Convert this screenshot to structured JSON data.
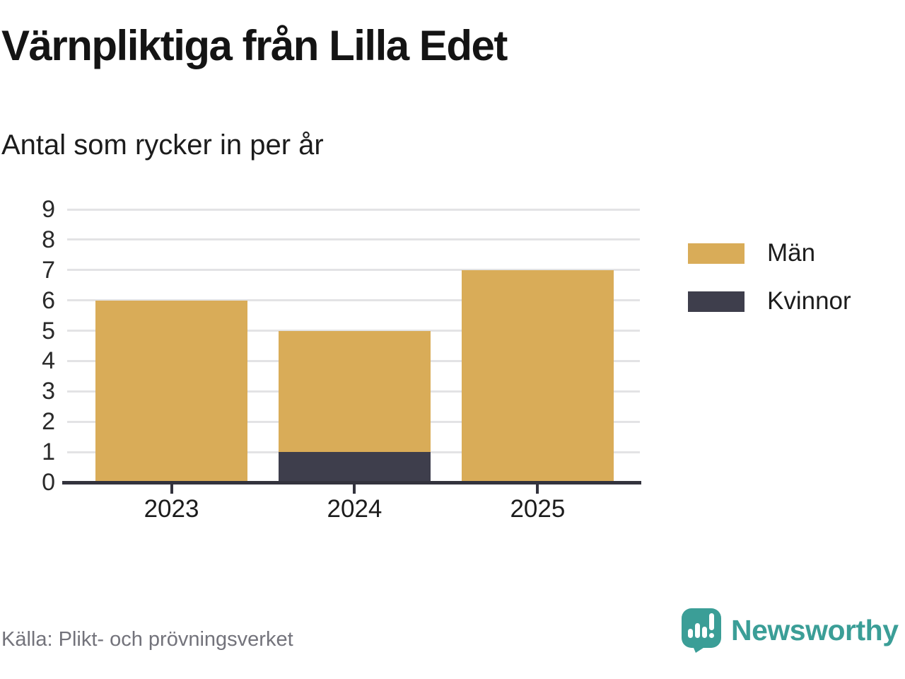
{
  "chart_data": {
    "type": "bar",
    "stacked": true,
    "title": "Värnpliktiga från Lilla Edet",
    "subtitle": "Antal som rycker in per år",
    "categories": [
      "2023",
      "2024",
      "2025"
    ],
    "series": [
      {
        "name": "Kvinnor",
        "color": "#3E3E4C",
        "values": [
          0,
          1,
          0
        ]
      },
      {
        "name": "Män",
        "color": "#D9AC58",
        "values": [
          6,
          4,
          7
        ]
      }
    ],
    "stack_totals": [
      6,
      5,
      7
    ],
    "xlabel": "",
    "ylabel": "",
    "ylim": [
      0,
      9
    ],
    "yticks": [
      0,
      1,
      2,
      3,
      4,
      5,
      6,
      7,
      8,
      9
    ],
    "grid": true,
    "legend_position": "right"
  },
  "legend": {
    "items": [
      {
        "label": "Män",
        "color": "#D9AC58"
      },
      {
        "label": "Kvinnor",
        "color": "#3E3E4C"
      }
    ]
  },
  "footer": {
    "source": "Källa: Plikt- och prövningsverket",
    "brand": "Newsworthy"
  },
  "colors": {
    "bar_gold": "#D9AC58",
    "bar_dark": "#3E3E4C",
    "axis": "#33333D",
    "grid": "#E3E3E5",
    "brand_teal": "#3B9E97",
    "text": "#1C1C1C",
    "muted_text": "#73737B"
  }
}
